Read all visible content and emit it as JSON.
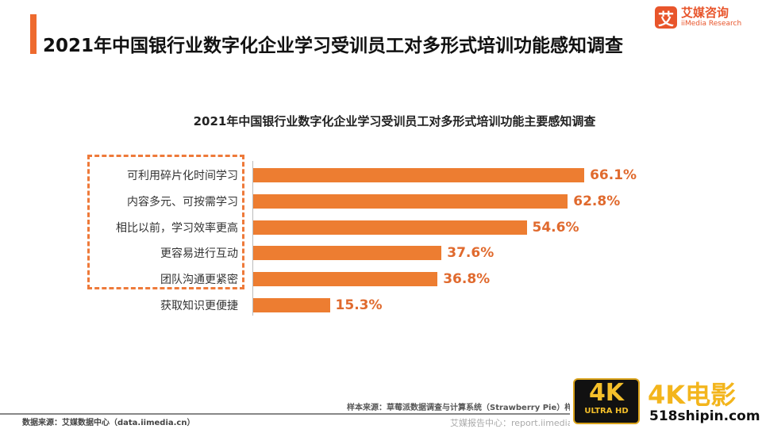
{
  "header": {
    "title": "2021年中国银行业数字化企业学习受训员工对多形式培训功能感知调查",
    "logo_mark": "艾",
    "logo_cn": "艾媒咨询",
    "logo_en": "iiMedia Research"
  },
  "chart_data": {
    "type": "bar",
    "orientation": "horizontal",
    "title": "2021年中国银行业数字化企业学习受训员工对多形式培训功能主要感知调查",
    "categories": [
      "可利用碎片化时间学习",
      "内容多元、可按需学习",
      "相比以前，学习效率更高",
      "更容易进行互动",
      "团队沟通更紧密",
      "获取知识更便捷"
    ],
    "values": [
      66.1,
      62.8,
      54.6,
      37.6,
      36.8,
      15.3
    ],
    "labels": [
      "66.1%",
      "62.8%",
      "54.6%",
      "37.6%",
      "36.8%",
      "15.3%"
    ],
    "unit": "%",
    "xlim": [
      0,
      100
    ],
    "highlighted_categories": 5,
    "bar_color": "#ed7d31",
    "label_color": "#e06a2e"
  },
  "footer": {
    "source": "数据来源：艾媒数据中心（data.iimedia.cn）",
    "sample": "样本来源：草莓派数据调查与计算系统（Strawberry Pie）样本",
    "report": "艾媒报告中心：report.iimedia"
  },
  "watermark": {
    "badge_top": "4K",
    "badge_bottom": "ULTRA HD",
    "title": "4K电影",
    "url": "518shipin.com"
  }
}
